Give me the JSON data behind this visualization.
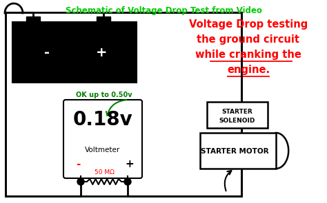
{
  "title": "Schematic of Voltage Drop Test from Video",
  "title_color": "#00cc00",
  "bg_color": "#ffffff",
  "red_text_lines": [
    "Voltage Drop testing",
    "the ground circuit",
    "while cranking the",
    "engine."
  ],
  "green_label": "OK up to 0.50v",
  "voltmeter_reading": "0.18v",
  "voltmeter_label": "Voltmeter",
  "resistor_label": "50 MΩ",
  "solenoid_label1": "STARTER",
  "solenoid_label2": "SOLENOID",
  "motor_label": "STARTER MOTOR",
  "title_fontsize": 8.5,
  "red_fontsize": 10.5,
  "vm_reading_fontsize": 20
}
